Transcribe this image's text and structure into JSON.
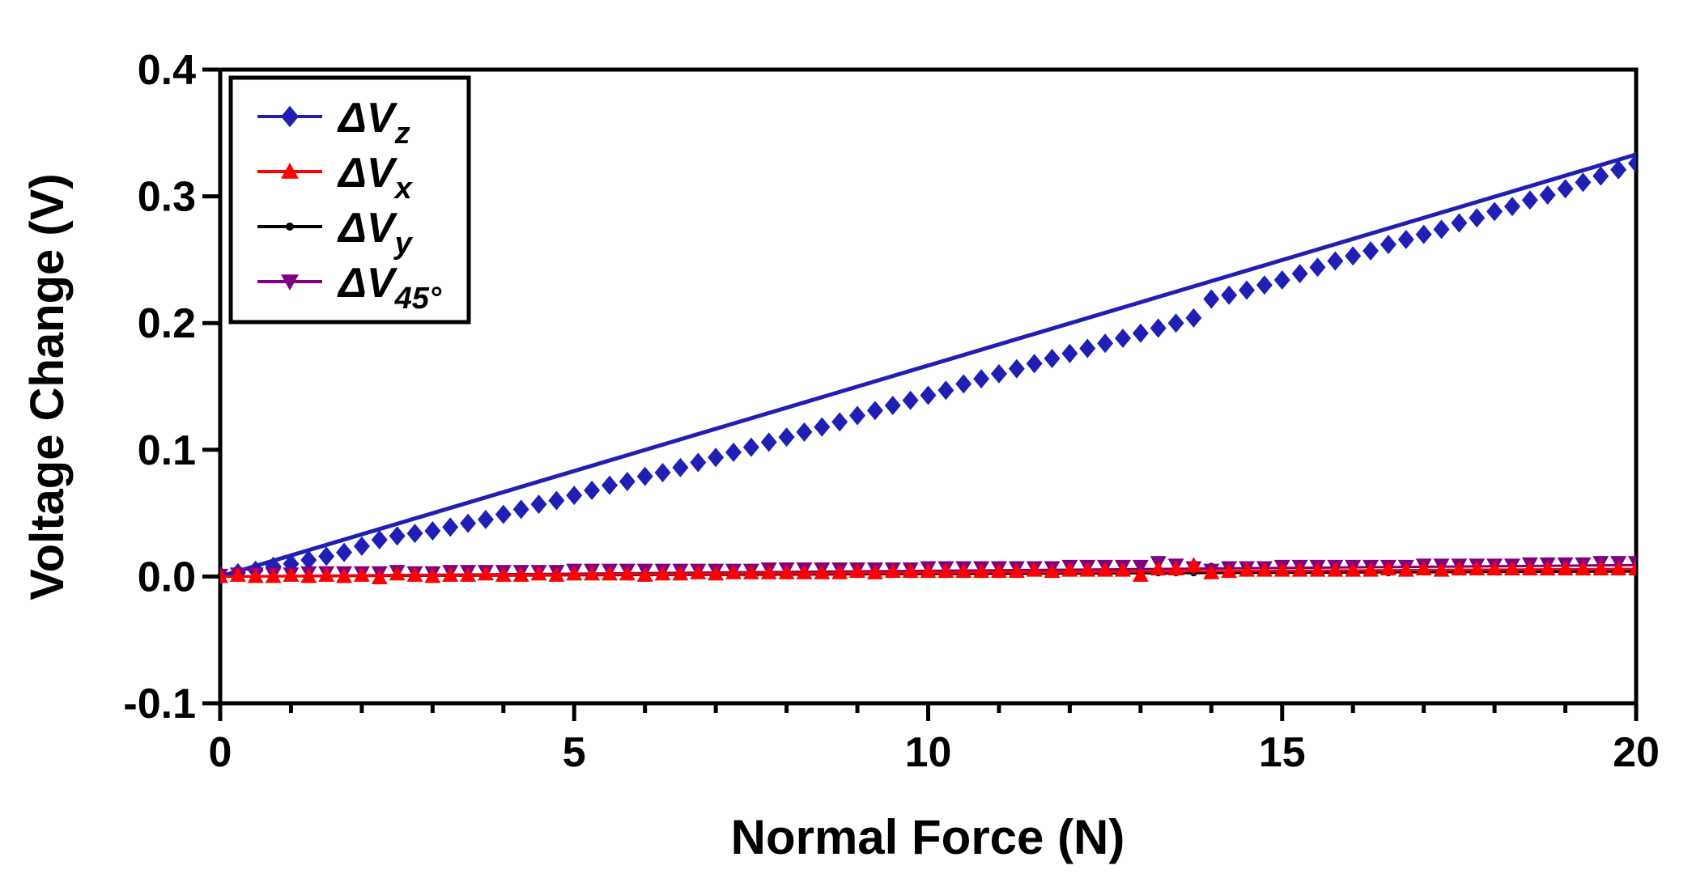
{
  "chart_data": {
    "type": "scatter",
    "title": "",
    "xlabel": "Normal Force (N)",
    "ylabel": "Voltage Change (V)",
    "xlim": [
      0,
      20
    ],
    "ylim": [
      -0.1,
      0.4
    ],
    "xticks": [
      0,
      5,
      10,
      15,
      20
    ],
    "xtick_labels": [
      "0",
      "5",
      "10",
      "15",
      "20"
    ],
    "yticks": [
      -0.1,
      0.0,
      0.1,
      0.2,
      0.3,
      0.4
    ],
    "ytick_labels": [
      "-0.1",
      "0.0",
      "0.1",
      "0.2",
      "0.3",
      "0.4"
    ],
    "grid": false,
    "legend_position": "top-left",
    "series": [
      {
        "name": "ΔVz",
        "label_main": "ΔV",
        "label_sub": "z",
        "color": "#1f1fb4",
        "marker": "diamond",
        "fit_line": [
          [
            0,
            0.0
          ],
          [
            20,
            0.333
          ]
        ],
        "x": [
          0,
          0.25,
          0.5,
          0.75,
          1.0,
          1.25,
          1.5,
          1.75,
          2.0,
          2.25,
          2.5,
          2.75,
          3.0,
          3.25,
          3.5,
          3.75,
          4.0,
          4.25,
          4.5,
          4.75,
          5.0,
          5.25,
          5.5,
          5.75,
          6.0,
          6.25,
          6.5,
          6.75,
          7.0,
          7.25,
          7.5,
          7.75,
          8.0,
          8.25,
          8.5,
          8.75,
          9.0,
          9.25,
          9.5,
          9.75,
          10.0,
          10.25,
          10.5,
          10.75,
          11.0,
          11.25,
          11.5,
          11.75,
          12.0,
          12.25,
          12.5,
          12.75,
          13.0,
          13.25,
          13.5,
          13.75,
          14.0,
          14.25,
          14.5,
          14.75,
          15.0,
          15.25,
          15.5,
          15.75,
          16.0,
          16.25,
          16.5,
          16.75,
          17.0,
          17.25,
          17.5,
          17.75,
          18.0,
          18.25,
          18.5,
          18.75,
          19.0,
          19.25,
          19.5,
          19.75,
          20.0
        ],
        "y": [
          0.001,
          0.003,
          0.005,
          0.008,
          0.01,
          0.013,
          0.016,
          0.019,
          0.024,
          0.029,
          0.032,
          0.034,
          0.036,
          0.039,
          0.042,
          0.045,
          0.049,
          0.053,
          0.057,
          0.06,
          0.064,
          0.068,
          0.072,
          0.075,
          0.079,
          0.082,
          0.086,
          0.09,
          0.094,
          0.098,
          0.102,
          0.106,
          0.11,
          0.114,
          0.118,
          0.122,
          0.127,
          0.131,
          0.135,
          0.139,
          0.143,
          0.147,
          0.152,
          0.156,
          0.16,
          0.164,
          0.168,
          0.172,
          0.176,
          0.18,
          0.184,
          0.188,
          0.192,
          0.196,
          0.2,
          0.204,
          0.219,
          0.222,
          0.226,
          0.23,
          0.234,
          0.239,
          0.244,
          0.249,
          0.253,
          0.257,
          0.262,
          0.266,
          0.27,
          0.274,
          0.279,
          0.283,
          0.288,
          0.292,
          0.297,
          0.301,
          0.306,
          0.311,
          0.316,
          0.321,
          0.326
        ]
      },
      {
        "name": "ΔVx",
        "label_main": "ΔV",
        "label_sub": "x",
        "color": "#ff0000",
        "marker": "triangle-up",
        "fit_line": [
          [
            0,
            0.0
          ],
          [
            20,
            0.006
          ]
        ],
        "x": [
          0,
          0.25,
          0.5,
          0.75,
          1.0,
          1.25,
          1.5,
          1.75,
          2.0,
          2.25,
          2.5,
          2.75,
          3.0,
          3.25,
          3.5,
          3.75,
          4.0,
          4.25,
          4.5,
          4.75,
          5.0,
          5.25,
          5.5,
          5.75,
          6.0,
          6.25,
          6.5,
          6.75,
          7.0,
          7.25,
          7.5,
          7.75,
          8.0,
          8.25,
          8.5,
          8.75,
          9.0,
          9.25,
          9.5,
          9.75,
          10.0,
          10.25,
          10.5,
          10.75,
          11.0,
          11.25,
          11.5,
          11.75,
          12.0,
          12.25,
          12.5,
          12.75,
          13.0,
          13.25,
          13.5,
          13.75,
          14.0,
          14.25,
          14.5,
          14.75,
          15.0,
          15.25,
          15.5,
          15.75,
          16.0,
          16.25,
          16.5,
          16.75,
          17.0,
          17.25,
          17.5,
          17.75,
          18.0,
          18.25,
          18.5,
          18.75,
          19.0,
          19.25,
          19.5,
          19.75,
          20.0
        ],
        "y": [
          0.0,
          0.001,
          0.0,
          0.0,
          0.001,
          0.0,
          0.001,
          0.0,
          0.001,
          -0.001,
          0.002,
          0.001,
          0.0,
          0.001,
          0.001,
          0.002,
          0.001,
          0.001,
          0.002,
          0.001,
          0.002,
          0.002,
          0.002,
          0.002,
          0.001,
          0.002,
          0.002,
          0.003,
          0.002,
          0.003,
          0.003,
          0.003,
          0.003,
          0.003,
          0.003,
          0.003,
          0.004,
          0.003,
          0.004,
          0.004,
          0.004,
          0.004,
          0.004,
          0.004,
          0.004,
          0.004,
          0.005,
          0.004,
          0.005,
          0.005,
          0.005,
          0.005,
          0.001,
          0.006,
          0.006,
          0.009,
          0.003,
          0.004,
          0.005,
          0.005,
          0.005,
          0.005,
          0.005,
          0.005,
          0.005,
          0.005,
          0.006,
          0.005,
          0.006,
          0.005,
          0.006,
          0.006,
          0.006,
          0.006,
          0.006,
          0.006,
          0.006,
          0.006,
          0.006,
          0.006,
          0.006
        ]
      },
      {
        "name": "ΔVy",
        "label_main": "ΔV",
        "label_sub": "y",
        "color": "#000000",
        "marker": "dot",
        "fit_line": [
          [
            0,
            0.0
          ],
          [
            20,
            0.004
          ]
        ],
        "x": [
          0,
          0.25,
          0.5,
          0.75,
          1.0,
          1.25,
          1.5,
          1.75,
          2.0,
          2.25,
          2.5,
          2.75,
          3.0,
          3.25,
          3.5,
          3.75,
          4.0,
          4.25,
          4.5,
          4.75,
          5.0,
          5.25,
          5.5,
          5.75,
          6.0,
          6.25,
          6.5,
          6.75,
          7.0,
          7.25,
          7.5,
          7.75,
          8.0,
          8.25,
          8.5,
          8.75,
          9.0,
          9.25,
          9.5,
          9.75,
          10.0,
          10.25,
          10.5,
          10.75,
          11.0,
          11.25,
          11.5,
          11.75,
          12.0,
          12.25,
          12.5,
          12.75,
          13.0,
          13.25,
          13.5,
          13.75,
          14.0,
          14.25,
          14.5,
          14.75,
          15.0,
          15.25,
          15.5,
          15.75,
          16.0,
          16.25,
          16.5,
          16.75,
          17.0,
          17.25,
          17.5,
          17.75,
          18.0,
          18.25,
          18.5,
          18.75,
          19.0,
          19.25,
          19.5,
          19.75,
          20.0
        ],
        "y": [
          0.0,
          0.0,
          0.0,
          0.0,
          0.0,
          0.0,
          0.001,
          0.0,
          0.001,
          0.0,
          0.001,
          0.001,
          0.001,
          0.001,
          0.001,
          0.001,
          0.001,
          0.001,
          0.001,
          0.001,
          0.001,
          0.001,
          0.001,
          0.001,
          0.001,
          0.001,
          0.002,
          0.002,
          0.002,
          0.002,
          0.002,
          0.002,
          0.002,
          0.002,
          0.002,
          0.002,
          0.002,
          0.002,
          0.002,
          0.002,
          0.002,
          0.002,
          0.002,
          0.002,
          0.002,
          0.002,
          0.003,
          0.003,
          0.003,
          0.003,
          0.003,
          0.003,
          0.003,
          0.003,
          0.003,
          0.003,
          0.008,
          0.003,
          0.003,
          0.003,
          0.003,
          0.003,
          0.003,
          0.003,
          0.003,
          0.003,
          0.003,
          0.004,
          0.004,
          0.004,
          0.004,
          0.004,
          0.004,
          0.004,
          0.004,
          0.004,
          0.004,
          0.004,
          0.004,
          0.004,
          0.004
        ]
      },
      {
        "name": "ΔV45°",
        "label_main": "ΔV",
        "label_sub": "45°",
        "color": "#800080",
        "marker": "triangle-down",
        "fit_line": [
          [
            0,
            0.0
          ],
          [
            20,
            0.009
          ]
        ],
        "x": [
          0,
          0.25,
          0.5,
          0.75,
          1.0,
          1.25,
          1.5,
          1.75,
          2.0,
          2.25,
          2.5,
          2.75,
          3.0,
          3.25,
          3.5,
          3.75,
          4.0,
          4.25,
          4.5,
          4.75,
          5.0,
          5.25,
          5.5,
          5.75,
          6.0,
          6.25,
          6.5,
          6.75,
          7.0,
          7.25,
          7.5,
          7.75,
          8.0,
          8.25,
          8.5,
          8.75,
          9.0,
          9.25,
          9.5,
          9.75,
          10.0,
          10.25,
          10.5,
          10.75,
          11.0,
          11.25,
          11.5,
          11.75,
          12.0,
          12.25,
          12.5,
          12.75,
          13.0,
          13.25,
          13.5,
          13.75,
          14.0,
          14.25,
          14.5,
          14.75,
          15.0,
          15.25,
          15.5,
          15.75,
          16.0,
          16.25,
          16.5,
          16.75,
          17.0,
          17.25,
          17.5,
          17.75,
          18.0,
          18.25,
          18.5,
          18.75,
          19.0,
          19.25,
          19.5,
          19.75,
          20.0
        ],
        "y": [
          0.001,
          0.002,
          0.002,
          0.002,
          0.002,
          0.003,
          0.003,
          0.003,
          0.003,
          0.003,
          0.004,
          0.003,
          0.003,
          0.004,
          0.004,
          0.004,
          0.004,
          0.004,
          0.004,
          0.004,
          0.005,
          0.005,
          0.005,
          0.005,
          0.005,
          0.005,
          0.005,
          0.005,
          0.005,
          0.005,
          0.005,
          0.006,
          0.006,
          0.006,
          0.006,
          0.006,
          0.006,
          0.006,
          0.006,
          0.006,
          0.007,
          0.007,
          0.007,
          0.007,
          0.007,
          0.007,
          0.007,
          0.007,
          0.008,
          0.008,
          0.008,
          0.008,
          0.008,
          0.011,
          0.009,
          0.007,
          0.005,
          0.007,
          0.007,
          0.007,
          0.008,
          0.008,
          0.008,
          0.008,
          0.008,
          0.008,
          0.008,
          0.008,
          0.009,
          0.009,
          0.009,
          0.009,
          0.009,
          0.009,
          0.01,
          0.01,
          0.01,
          0.01,
          0.011,
          0.011,
          0.011
        ]
      }
    ]
  }
}
